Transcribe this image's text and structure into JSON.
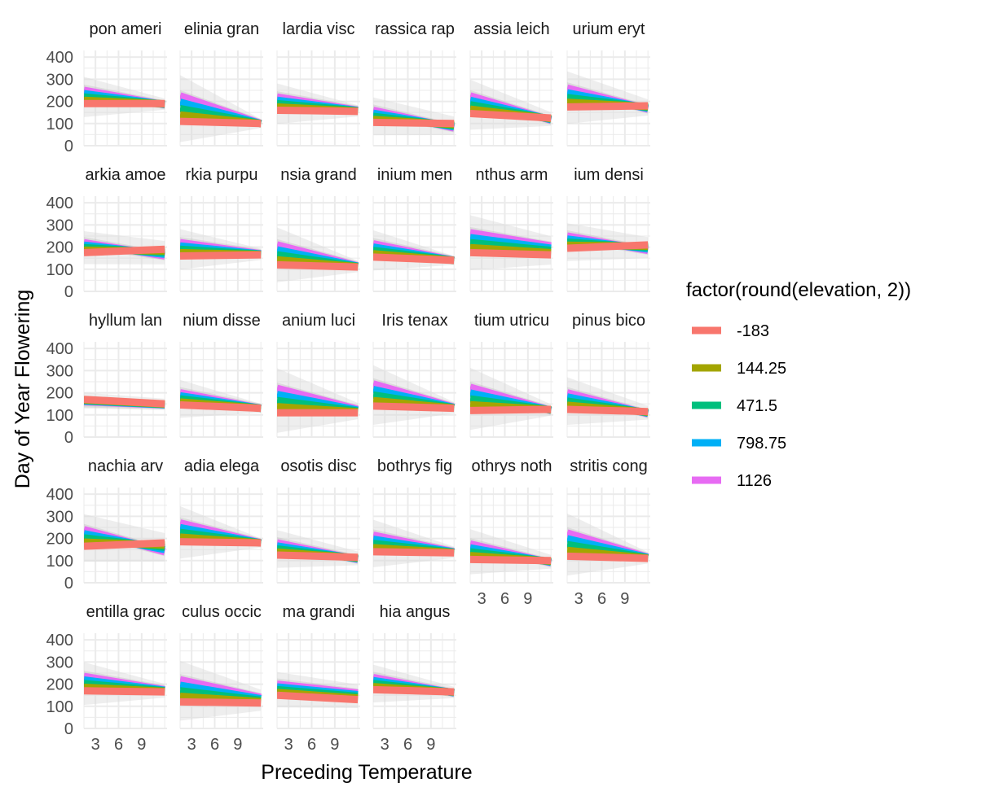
{
  "chart_data": {
    "type": "line",
    "layout": "faceted small multiples with confidence ribbons",
    "xlabel": "Preceding Temperature",
    "ylabel": "Day of Year Flowering",
    "x_ticks": [
      3,
      6,
      9
    ],
    "y_ticks": [
      0,
      100,
      200,
      300,
      400
    ],
    "xlim": [
      1.5,
      12.3
    ],
    "ylim": [
      0,
      430
    ],
    "grid": true,
    "legend": {
      "title": "factor(round(elevation, 2))",
      "position": "right",
      "entries": [
        {
          "label": "-183",
          "color": "#F8766D"
        },
        {
          "label": "144.25",
          "color": "#A3A500"
        },
        {
          "label": "471.5",
          "color": "#00BF7D"
        },
        {
          "label": "798.75",
          "color": "#00B0F6"
        },
        {
          "label": "1126",
          "color": "#E76BF3"
        }
      ]
    },
    "x_range": [
      1.5,
      12.0
    ],
    "panels": [
      {
        "label": "pon ameri",
        "values_low_elev": [
          190,
          190
        ],
        "values_high_elev": [
          250,
          185
        ]
      },
      {
        "label": "elinia gran",
        "values_low_elev": [
          110,
          100
        ],
        "values_high_elev": [
          225,
          100
        ]
      },
      {
        "label": "lardia visc",
        "values_low_elev": [
          160,
          155
        ],
        "values_high_elev": [
          220,
          160
        ]
      },
      {
        "label": "rassica rap",
        "values_low_elev": [
          105,
          100
        ],
        "values_high_elev": [
          160,
          80
        ]
      },
      {
        "label": "assia leich",
        "values_low_elev": [
          145,
          125
        ],
        "values_high_elev": [
          225,
          115
        ]
      },
      {
        "label": "urium eryt",
        "values_low_elev": [
          175,
          180
        ],
        "values_high_elev": [
          260,
          165
        ]
      },
      {
        "label": "arkia amoe",
        "values_low_elev": [
          175,
          190
        ],
        "values_high_elev": [
          220,
          160
        ]
      },
      {
        "label": "rkia purpu",
        "values_low_elev": [
          160,
          165
        ],
        "values_high_elev": [
          220,
          170
        ]
      },
      {
        "label": "nsia grand",
        "values_low_elev": [
          120,
          110
        ],
        "values_high_elev": [
          210,
          115
        ]
      },
      {
        "label": "inium men",
        "values_low_elev": [
          155,
          140
        ],
        "values_high_elev": [
          215,
          140
        ]
      },
      {
        "label": "nthus arm",
        "values_low_elev": [
          175,
          165
        ],
        "values_high_elev": [
          265,
          205
        ]
      },
      {
        "label": "ium densi",
        "values_low_elev": [
          195,
          210
        ],
        "values_high_elev": [
          250,
          185
        ]
      },
      {
        "label": "hyllum lan",
        "values_low_elev": [
          170,
          150
        ],
        "values_high_elev": [
          160,
          145
        ]
      },
      {
        "label": "nium disse",
        "values_low_elev": [
          145,
          130
        ],
        "values_high_elev": [
          200,
          130
        ]
      },
      {
        "label": "anium luci",
        "values_low_elev": [
          110,
          110
        ],
        "values_high_elev": [
          220,
          125
        ]
      },
      {
        "label": "Iris tenax",
        "values_low_elev": [
          140,
          130
        ],
        "values_high_elev": [
          240,
          135
        ]
      },
      {
        "label": "tium utricu",
        "values_low_elev": [
          120,
          125
        ],
        "values_high_elev": [
          225,
          120
        ]
      },
      {
        "label": "pinus bico",
        "values_low_elev": [
          125,
          115
        ],
        "values_high_elev": [
          200,
          105
        ]
      },
      {
        "label": "nachia arv",
        "values_low_elev": [
          165,
          180
        ],
        "values_high_elev": [
          240,
          140
        ]
      },
      {
        "label": "adia elega",
        "values_low_elev": [
          185,
          180
        ],
        "values_high_elev": [
          270,
          180
        ]
      },
      {
        "label": "osotis disc",
        "values_low_elev": [
          125,
          115
        ],
        "values_high_elev": [
          180,
          105
        ]
      },
      {
        "label": "bothrys fig",
        "values_low_elev": [
          140,
          135
        ],
        "values_high_elev": [
          215,
          140
        ]
      },
      {
        "label": "othrys noth",
        "values_low_elev": [
          105,
          100
        ],
        "values_high_elev": [
          175,
          90
        ]
      },
      {
        "label": "stritis cong",
        "values_low_elev": [
          120,
          110
        ],
        "values_high_elev": [
          225,
          115
        ]
      },
      {
        "label": "entilla grac",
        "values_low_elev": [
          170,
          165
        ],
        "values_high_elev": [
          235,
          175
        ]
      },
      {
        "label": "culus occic",
        "values_low_elev": [
          120,
          115
        ],
        "values_high_elev": [
          220,
          140
        ]
      },
      {
        "label": "ma grandi",
        "values_low_elev": [
          150,
          130
        ],
        "values_high_elev": [
          200,
          160
        ]
      },
      {
        "label": "hia angus",
        "values_low_elev": [
          175,
          165
        ],
        "values_high_elev": [
          230,
          160
        ]
      }
    ]
  }
}
